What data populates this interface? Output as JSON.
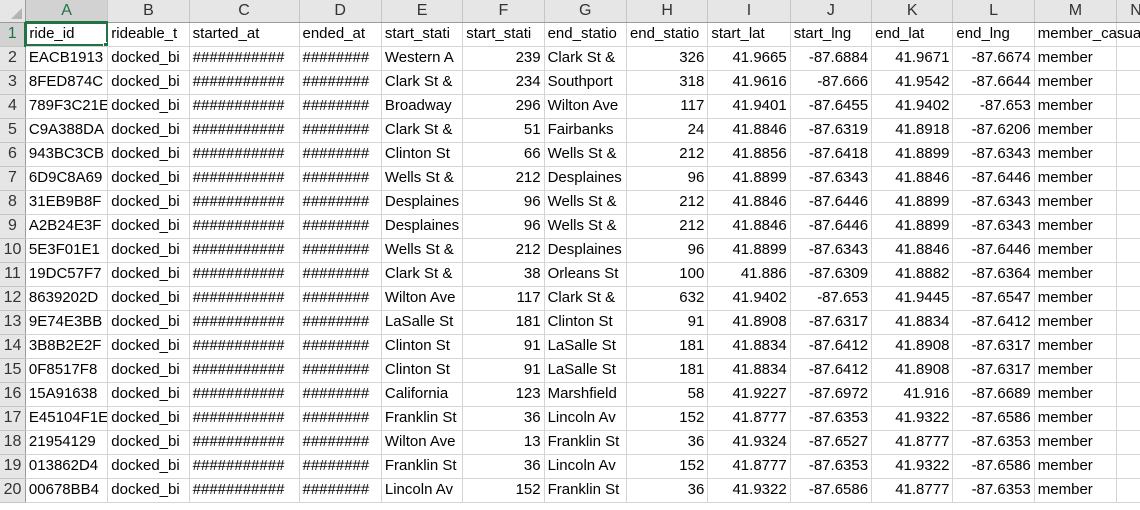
{
  "columns": [
    "A",
    "B",
    "C",
    "D",
    "E",
    "F",
    "G",
    "H",
    "I",
    "J",
    "K",
    "L",
    "M",
    "N"
  ],
  "header_row": [
    "ride_id",
    "rideable_t",
    "started_at",
    "ended_at",
    "start_stati",
    "start_stati",
    "end_statio",
    "end_statio",
    "start_lat",
    "start_lng",
    "end_lat",
    "end_lng",
    "member_casual",
    ""
  ],
  "rows": [
    [
      "EACB1913",
      "docked_bi",
      "###########",
      "########",
      "Western A",
      "239",
      "Clark St &",
      "326",
      "41.9665",
      "-87.6884",
      "41.9671",
      "-87.6674",
      "member",
      ""
    ],
    [
      "8FED874C",
      "docked_bi",
      "###########",
      "########",
      "Clark St &",
      "234",
      "Southport",
      "318",
      "41.9616",
      "-87.666",
      "41.9542",
      "-87.6644",
      "member",
      ""
    ],
    [
      "789F3C21E",
      "docked_bi",
      "###########",
      "########",
      "Broadway",
      "296",
      "Wilton Ave",
      "117",
      "41.9401",
      "-87.6455",
      "41.9402",
      "-87.653",
      "member",
      ""
    ],
    [
      "C9A388DA",
      "docked_bi",
      "###########",
      "########",
      "Clark St &",
      "51",
      "Fairbanks",
      "24",
      "41.8846",
      "-87.6319",
      "41.8918",
      "-87.6206",
      "member",
      ""
    ],
    [
      "943BC3CB",
      "docked_bi",
      "###########",
      "########",
      "Clinton St",
      "66",
      "Wells St &",
      "212",
      "41.8856",
      "-87.6418",
      "41.8899",
      "-87.6343",
      "member",
      ""
    ],
    [
      "6D9C8A69",
      "docked_bi",
      "###########",
      "########",
      "Wells St &",
      "212",
      "Desplaines",
      "96",
      "41.8899",
      "-87.6343",
      "41.8846",
      "-87.6446",
      "member",
      ""
    ],
    [
      "31EB9B8F",
      "docked_bi",
      "###########",
      "########",
      "Desplaines",
      "96",
      "Wells St &",
      "212",
      "41.8846",
      "-87.6446",
      "41.8899",
      "-87.6343",
      "member",
      ""
    ],
    [
      "A2B24E3F",
      "docked_bi",
      "###########",
      "########",
      "Desplaines",
      "96",
      "Wells St &",
      "212",
      "41.8846",
      "-87.6446",
      "41.8899",
      "-87.6343",
      "member",
      ""
    ],
    [
      "5E3F01E1",
      "docked_bi",
      "###########",
      "########",
      "Wells St &",
      "212",
      "Desplaines",
      "96",
      "41.8899",
      "-87.6343",
      "41.8846",
      "-87.6446",
      "member",
      ""
    ],
    [
      "19DC57F7",
      "docked_bi",
      "###########",
      "########",
      "Clark St &",
      "38",
      "Orleans St",
      "100",
      "41.886",
      "-87.6309",
      "41.8882",
      "-87.6364",
      "member",
      ""
    ],
    [
      "8639202D",
      "docked_bi",
      "###########",
      "########",
      "Wilton Ave",
      "117",
      "Clark St &",
      "632",
      "41.9402",
      "-87.653",
      "41.9445",
      "-87.6547",
      "member",
      ""
    ],
    [
      "9E74E3BB",
      "docked_bi",
      "###########",
      "########",
      "LaSalle St",
      "181",
      "Clinton St",
      "91",
      "41.8908",
      "-87.6317",
      "41.8834",
      "-87.6412",
      "member",
      ""
    ],
    [
      "3B8B2E2F",
      "docked_bi",
      "###########",
      "########",
      "Clinton St",
      "91",
      "LaSalle St",
      "181",
      "41.8834",
      "-87.6412",
      "41.8908",
      "-87.6317",
      "member",
      ""
    ],
    [
      "0F8517F8",
      "docked_bi",
      "###########",
      "########",
      "Clinton St",
      "91",
      "LaSalle St",
      "181",
      "41.8834",
      "-87.6412",
      "41.8908",
      "-87.6317",
      "member",
      ""
    ],
    [
      "15A91638",
      "docked_bi",
      "###########",
      "########",
      "California",
      "123",
      "Marshfield",
      "58",
      "41.9227",
      "-87.6972",
      "41.916",
      "-87.6689",
      "member",
      ""
    ],
    [
      "E45104F1E",
      "docked_bi",
      "###########",
      "########",
      "Franklin St",
      "36",
      "Lincoln Av",
      "152",
      "41.8777",
      "-87.6353",
      "41.9322",
      "-87.6586",
      "member",
      ""
    ],
    [
      "21954129",
      "docked_bi",
      "###########",
      "########",
      "Wilton Ave",
      "13",
      "Franklin St",
      "36",
      "41.9324",
      "-87.6527",
      "41.8777",
      "-87.6353",
      "member",
      ""
    ],
    [
      "013862D4",
      "docked_bi",
      "###########",
      "########",
      "Franklin St",
      "36",
      "Lincoln Av",
      "152",
      "41.8777",
      "-87.6353",
      "41.9322",
      "-87.6586",
      "member",
      ""
    ],
    [
      "00678BB4",
      "docked_bi",
      "###########",
      "########",
      "Lincoln Av",
      "152",
      "Franklin St",
      "36",
      "41.9322",
      "-87.6586",
      "41.8777",
      "-87.6353",
      "member",
      ""
    ]
  ],
  "selection": {
    "column": "A",
    "row": "1"
  },
  "colors": {
    "accent": "#217346",
    "header_bg": "#e6e6e6",
    "header_selected_bg": "#d2d2d2",
    "gridline": "#d4d4d4"
  }
}
